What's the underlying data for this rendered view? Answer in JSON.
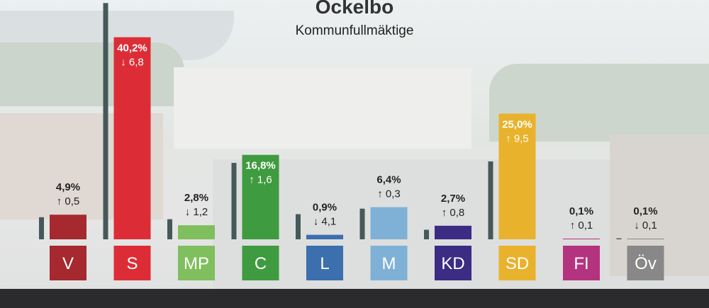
{
  "chart_data": {
    "type": "bar",
    "title": "Ockelbo",
    "subtitle": "Kommunfullmäktige",
    "categories": [
      "V",
      "S",
      "MP",
      "C",
      "L",
      "M",
      "KD",
      "SD",
      "FI",
      "Öv"
    ],
    "series": [
      {
        "values": [
          4.9,
          40.2,
          2.8,
          16.8,
          0.9,
          6.4,
          2.7,
          25.0,
          0.1,
          0.1
        ]
      }
    ],
    "previous_values": [
      4.4,
      47.0,
      4.0,
      15.2,
      5.0,
      6.1,
      1.9,
      15.5,
      0.0,
      0.2
    ],
    "change_values": [
      0.5,
      6.8,
      1.2,
      1.6,
      4.1,
      0.3,
      0.8,
      9.5,
      0.1,
      0.1
    ],
    "change_direction": [
      "up",
      "down",
      "down",
      "up",
      "down",
      "up",
      "up",
      "up",
      "up",
      "down"
    ],
    "value_labels": [
      "4,9%",
      "40,2%",
      "2,8%",
      "16,8%",
      "0,9%",
      "6,4%",
      "2,7%",
      "25,0%",
      "0,1%",
      "0,1%"
    ],
    "change_labels": [
      "0,5",
      "6,8",
      "1,2",
      "1,6",
      "4,1",
      "0,3",
      "0,8",
      "9,5",
      "0,1",
      "0,1"
    ],
    "colors": [
      "#a5292e",
      "#dc2d36",
      "#7fbf5e",
      "#3f9b3f",
      "#3b6fae",
      "#7fb1d6",
      "#3c2c83",
      "#e9b22c",
      "#b4337f",
      "#888888"
    ],
    "previous_bar_color": "#46585a",
    "ylim": [
      0,
      50
    ]
  }
}
